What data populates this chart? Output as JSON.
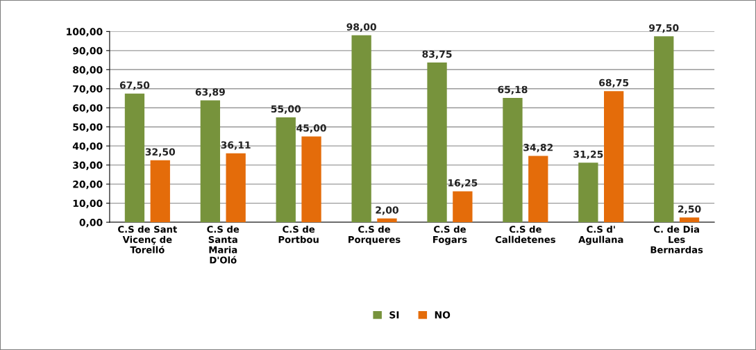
{
  "chart_data": {
    "type": "bar",
    "categories": [
      "C.S de Sant\nVicenç de\nTorelló",
      "C.S de\nSanta\nMaria\nD'Oló",
      "C.S de\nPortbou",
      "C.S de\nPorqueres",
      "C.S de\nFogars",
      "C.S de\nCalldetenes",
      "C.S d'\nAgullana",
      "C. de Dia\nLes\nBernardas"
    ],
    "series": [
      {
        "name": "SI",
        "color": "#77933c",
        "values": [
          67.5,
          63.89,
          55.0,
          98.0,
          83.75,
          65.18,
          31.25,
          97.5
        ],
        "value_labels": [
          "67,50",
          "63,89",
          "55,00",
          "98,00",
          "83,75",
          "65,18",
          "31,25",
          "97,50"
        ]
      },
      {
        "name": "NO",
        "color": "#e46c0a",
        "values": [
          32.5,
          36.11,
          45.0,
          2.0,
          16.25,
          34.82,
          68.75,
          2.5
        ],
        "value_labels": [
          "32,50",
          "36,11",
          "45,00",
          "2,00",
          "16,25",
          "34,82",
          "68,75",
          "2,50"
        ]
      }
    ],
    "ylim": [
      0,
      100
    ],
    "yticks": [
      {
        "value": 0,
        "label": "0,00"
      },
      {
        "value": 10,
        "label": "10,00"
      },
      {
        "value": 20,
        "label": "20,00"
      },
      {
        "value": 30,
        "label": "30,00"
      },
      {
        "value": 40,
        "label": "40,00"
      },
      {
        "value": 50,
        "label": "50,00"
      },
      {
        "value": 60,
        "label": "60,00"
      },
      {
        "value": 70,
        "label": "70,00"
      },
      {
        "value": 80,
        "label": "80,00"
      },
      {
        "value": 90,
        "label": "90,00"
      },
      {
        "value": 100,
        "label": "100,00"
      }
    ],
    "grid": "y",
    "legend": "bottom"
  }
}
